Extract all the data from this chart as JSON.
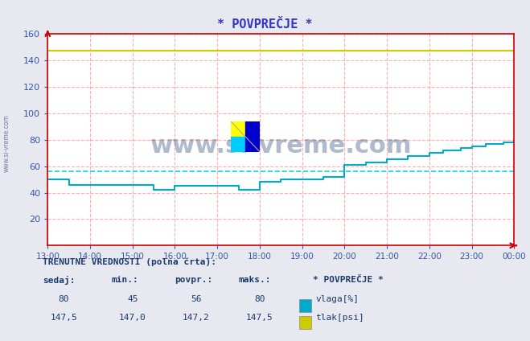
{
  "title": "* POVPREČJE *",
  "title_color": "#3333cc",
  "bg_color": "#e8e8f0",
  "plot_bg_color": "#ffffff",
  "grid_color": "#ff9999",
  "ylim": [
    0,
    160
  ],
  "yticks": [
    20,
    40,
    60,
    80,
    100,
    120,
    140,
    160
  ],
  "xtick_labels": [
    "13:00",
    "14:00",
    "15:00",
    "16:00",
    "17:00",
    "18:00",
    "19:00",
    "20:00",
    "21:00",
    "22:00",
    "23:00",
    "00:00"
  ],
  "vlaga_color": "#00aacc",
  "tlak_color": "#cccc00",
  "avg_vlaga_color": "#00cccc",
  "avg_vlaga": 56,
  "vlaga_current": 80,
  "vlaga_min": 45,
  "vlaga_avg": 56,
  "vlaga_max": 80,
  "tlak_current": 147.5,
  "tlak_min": 147.0,
  "tlak_avg": 147.2,
  "tlak_max": 147.5,
  "watermark_text": "www.si-vreme.com",
  "watermark_color": "#1a3a6e",
  "left_text": "www.si-vreme.com",
  "left_text_color": "#1a3a6e",
  "footer_title": "TRENUTNE VREDNOSTI (polna črta):",
  "footer_color": "#1a3a6e",
  "legend_vlaga": "vlaga[%]",
  "legend_tlak": "tlak[psi]"
}
